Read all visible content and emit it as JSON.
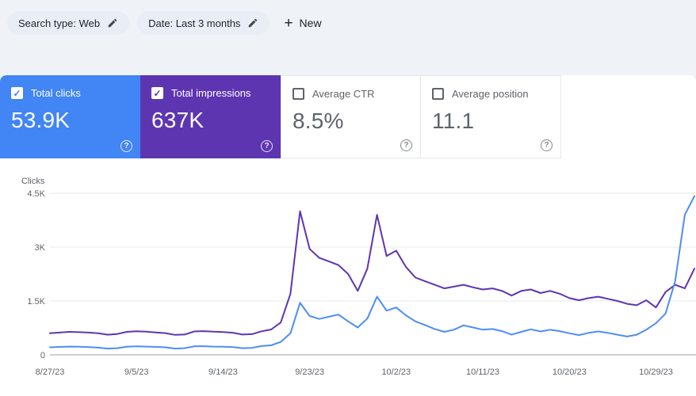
{
  "filter_bar": {
    "search_type_chip": "Search type: Web",
    "date_chip": "Date: Last 3 months",
    "new_button": "New"
  },
  "icons": {
    "edit": "pencil",
    "plus": "+",
    "help": "?",
    "check": "✓"
  },
  "metric_cards": [
    {
      "label": "Total clicks",
      "value": "53.9K",
      "checked": true,
      "background": "#4285f4"
    },
    {
      "label": "Total impressions",
      "value": "637K",
      "checked": true,
      "background": "#5e35b1"
    },
    {
      "label": "Average CTR",
      "value": "8.5%",
      "checked": false,
      "background": "#ffffff"
    },
    {
      "label": "Average position",
      "value": "11.1",
      "checked": false,
      "background": "#ffffff"
    }
  ],
  "chart_data": {
    "type": "line",
    "title": "",
    "ylabel": "Clicks",
    "ylim": [
      0,
      4500
    ],
    "grid": true,
    "legend": "none",
    "y_tick_values": [
      4500,
      3000,
      1500,
      0
    ],
    "y_tick_labels": [
      "4.5K",
      "3K",
      "1.5K",
      "0"
    ],
    "x_tick_labels": [
      "8/27/23",
      "9/5/23",
      "9/14/23",
      "9/23/23",
      "10/2/23",
      "10/11/23",
      "10/20/23",
      "10/29/23"
    ],
    "x": [
      "8/27/23",
      "8/28/23",
      "8/29/23",
      "8/30/23",
      "8/31/23",
      "9/1/23",
      "9/2/23",
      "9/3/23",
      "9/4/23",
      "9/5/23",
      "9/6/23",
      "9/7/23",
      "9/8/23",
      "9/9/23",
      "9/10/23",
      "9/11/23",
      "9/12/23",
      "9/13/23",
      "9/14/23",
      "9/15/23",
      "9/16/23",
      "9/17/23",
      "9/18/23",
      "9/19/23",
      "9/20/23",
      "9/21/23",
      "9/22/23",
      "9/23/23",
      "9/24/23",
      "9/25/23",
      "9/26/23",
      "9/27/23",
      "9/28/23",
      "9/29/23",
      "9/30/23",
      "10/1/23",
      "10/2/23",
      "10/3/23",
      "10/4/23",
      "10/5/23",
      "10/6/23",
      "10/7/23",
      "10/8/23",
      "10/9/23",
      "10/10/23",
      "10/11/23",
      "10/12/23",
      "10/13/23",
      "10/14/23",
      "10/15/23",
      "10/16/23",
      "10/17/23",
      "10/18/23",
      "10/19/23",
      "10/20/23",
      "10/21/23",
      "10/22/23",
      "10/23/23",
      "10/24/23",
      "10/25/23",
      "10/26/23",
      "10/27/23",
      "10/28/23",
      "10/29/23",
      "10/30/23",
      "10/31/23",
      "11/1/23",
      "11/2/23"
    ],
    "series": [
      {
        "name": "Total clicks",
        "color": "#4e8df5",
        "values": [
          210,
          220,
          230,
          225,
          215,
          200,
          175,
          185,
          225,
          235,
          230,
          220,
          210,
          175,
          185,
          235,
          240,
          230,
          225,
          215,
          185,
          195,
          245,
          265,
          360,
          600,
          1450,
          1080,
          1000,
          1060,
          1120,
          930,
          760,
          1010,
          1620,
          1230,
          1320,
          1100,
          930,
          830,
          720,
          640,
          700,
          820,
          760,
          700,
          720,
          660,
          560,
          640,
          710,
          650,
          700,
          660,
          600,
          550,
          610,
          650,
          610,
          560,
          510,
          560,
          700,
          880,
          1150,
          2050,
          3900,
          4420
        ]
      },
      {
        "name": "Total impressions (scaled to clicks axis)",
        "color": "#5e35b1",
        "values": [
          600,
          620,
          640,
          630,
          620,
          600,
          560,
          580,
          640,
          655,
          645,
          625,
          605,
          555,
          565,
          650,
          660,
          645,
          635,
          615,
          565,
          575,
          655,
          705,
          900,
          1700,
          4000,
          2950,
          2700,
          2600,
          2500,
          2250,
          1780,
          2400,
          3900,
          2750,
          2900,
          2450,
          2150,
          2050,
          1950,
          1850,
          1900,
          1950,
          1880,
          1820,
          1850,
          1780,
          1650,
          1780,
          1820,
          1720,
          1780,
          1700,
          1580,
          1520,
          1580,
          1620,
          1560,
          1500,
          1420,
          1380,
          1520,
          1320,
          1750,
          1950,
          1850,
          2400
        ]
      }
    ]
  },
  "colors": {
    "clicks_accent": "#4285f4",
    "impressions_accent": "#5e35b1",
    "page_background": "#eff3f8",
    "panel_background": "#ffffff"
  }
}
